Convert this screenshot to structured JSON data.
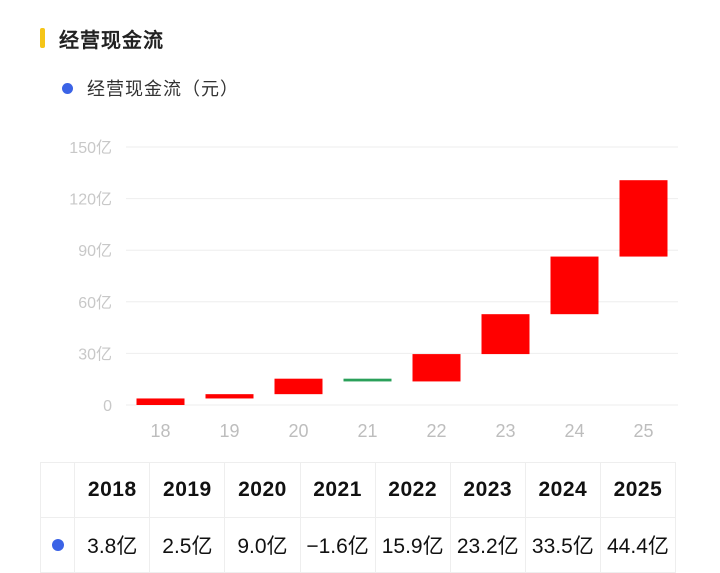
{
  "header": {
    "title": "经营现金流"
  },
  "legend": {
    "label": "经营现金流（元）",
    "color": "#3b63e6"
  },
  "colors": {
    "positive": "#ff0000",
    "negative": "#2aa05a",
    "grid": "#eeeeee",
    "accent": "#f5c518"
  },
  "chart_data": {
    "type": "waterfall",
    "title": "经营现金流",
    "series_name": "经营现金流（元）",
    "categories": [
      "18",
      "19",
      "20",
      "21",
      "22",
      "23",
      "24",
      "25"
    ],
    "values": [
      3.8,
      2.5,
      9.0,
      -1.6,
      15.9,
      23.2,
      33.5,
      44.4
    ],
    "unit": "亿",
    "ylim": [
      0,
      150
    ],
    "yticks": [
      0,
      30,
      60,
      90,
      120,
      150
    ],
    "ytick_labels": [
      "0",
      "30亿",
      "60亿",
      "90亿",
      "120亿",
      "150亿"
    ],
    "grid": true
  },
  "table": {
    "years": [
      "2018",
      "2019",
      "2020",
      "2021",
      "2022",
      "2023",
      "2024",
      "2025"
    ],
    "values": [
      "3.8亿",
      "2.5亿",
      "9.0亿",
      "−1.6亿",
      "15.9亿",
      "23.2亿",
      "33.5亿",
      "44.4亿"
    ]
  }
}
